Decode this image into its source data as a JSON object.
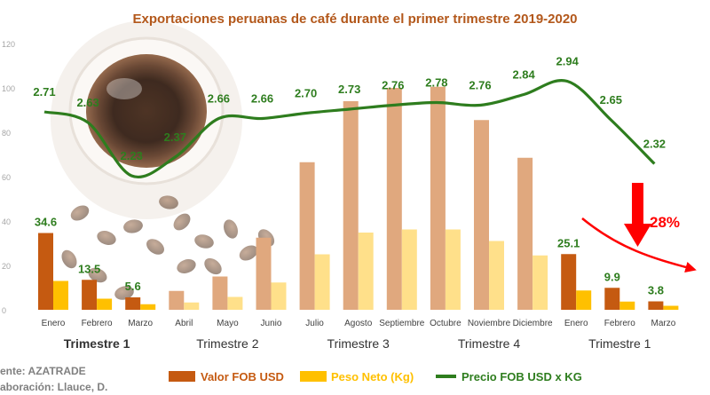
{
  "chart_data": {
    "type": "bar",
    "title": "Exportaciones peruanas de café durante el primer trimestre 2019-2020",
    "categories": [
      "Enero",
      "Febrero",
      "Marzo",
      "Abril",
      "Mayo",
      "Junio",
      "Julio",
      "Agosto",
      "Septiembre",
      "Octubre",
      "Noviembre",
      "Diciembre",
      "Enero",
      "Febrero",
      "Marzo"
    ],
    "groups": [
      {
        "label": "Trimestre 1",
        "bold": true
      },
      {
        "label": "Trimestre 2",
        "bold": false
      },
      {
        "label": "Trimestre 3",
        "bold": false
      },
      {
        "label": "Trimestre 4",
        "bold": false
      },
      {
        "label": "Trimestre 1",
        "bold": false
      }
    ],
    "ylim": [
      0,
      120
    ],
    "yticks": [
      "0",
      "20",
      "40",
      "60",
      "80",
      "100",
      "120"
    ],
    "series": [
      {
        "name": "Valor FOB USD",
        "kind": "bar",
        "values": [
          34.6,
          13.5,
          5.6,
          8.5,
          15,
          32.5,
          66.5,
          94,
          100,
          100.5,
          85.5,
          68.5,
          25.1,
          9.9,
          3.8
        ],
        "colors": [
          "#c55a11",
          "#c55a11",
          "#c55a11",
          "#e0a87e",
          "#e0a87e",
          "#e0a87e",
          "#e0a87e",
          "#e0a87e",
          "#e0a87e",
          "#e0a87e",
          "#e0a87e",
          "#e0a87e",
          "#c55a11",
          "#c55a11",
          "#c55a11"
        ],
        "labels": [
          "34.6",
          "13.5",
          "5.6",
          "",
          "",
          "",
          "",
          "",
          "",
          "",
          "",
          "",
          "25.1",
          "9.9",
          "3.8"
        ]
      },
      {
        "name": "Peso Neto (Kg)",
        "kind": "bar",
        "values": [
          13,
          5,
          2.5,
          3.3,
          5.8,
          12.3,
          25,
          34.8,
          36.2,
          36.2,
          31,
          24.5,
          8.7,
          3.7,
          1.8
        ],
        "colors": [
          "#ffc000",
          "#ffc000",
          "#ffc000",
          "#ffe08a",
          "#ffe08a",
          "#ffe08a",
          "#ffe08a",
          "#ffe08a",
          "#ffe08a",
          "#ffe08a",
          "#ffe08a",
          "#ffe08a",
          "#ffc000",
          "#ffc000",
          "#ffc000"
        ],
        "labels": []
      },
      {
        "name": "Precio FOB USD x KG",
        "kind": "line",
        "color": "#2e7d1e",
        "values": [
          2.71,
          2.63,
          2.23,
          2.37,
          2.66,
          2.66,
          2.7,
          2.73,
          2.76,
          2.78,
          2.76,
          2.84,
          2.94,
          2.65,
          2.32
        ],
        "labels": [
          "2.71",
          "2.63",
          "2.23",
          "2.37",
          "2.66",
          "2.66",
          "2.70",
          "2.73",
          "2.76",
          "2.78",
          "2.76",
          "2.84",
          "2.94",
          "2.65",
          "2.32"
        ]
      }
    ],
    "legend": {
      "position": "bottom"
    },
    "annotation": {
      "text": "28%",
      "color": "#ff0000"
    },
    "source": [
      "ente: AZATRADE",
      "aboración: Llauce, D."
    ]
  }
}
